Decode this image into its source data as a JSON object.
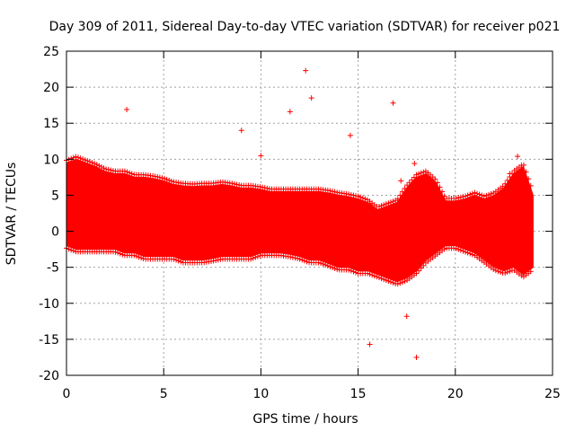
{
  "chart_data": {
    "type": "scatter",
    "title": "Day 309 of 2011, Sidereal Day-to-day VTEC variation (SDTVAR) for receiver p021",
    "xlabel": "GPS time / hours",
    "ylabel": "SDTVAR / TECUs",
    "xlim": [
      0,
      25
    ],
    "ylim": [
      -20,
      25
    ],
    "xticks": [
      "0",
      "5",
      "10",
      "15",
      "20",
      "25"
    ],
    "yticks": [
      "25",
      "20",
      "15",
      "10",
      "5",
      "0",
      "-5",
      "-10",
      "-15",
      "-20"
    ],
    "grid": true,
    "marker": "+",
    "color": "#ff0000",
    "data_range": [
      0,
      24
    ],
    "series": [
      {
        "name": "band_upper",
        "x": [
          0,
          0.5,
          1,
          1.5,
          2,
          2.5,
          3,
          3.5,
          4,
          4.5,
          5,
          5.5,
          6,
          6.5,
          7,
          7.5,
          8,
          8.5,
          9,
          9.5,
          10,
          10.5,
          11,
          11.5,
          12,
          12.5,
          13,
          13.5,
          14,
          14.5,
          15,
          15.5,
          16,
          16.5,
          17,
          17.5,
          18,
          18.5,
          19,
          19.5,
          20,
          20.5,
          21,
          21.5,
          22,
          22.5,
          23,
          23.5,
          24
        ],
        "y": [
          9.5,
          10,
          9.5,
          9,
          8.3,
          8,
          8,
          7.5,
          7.5,
          7.3,
          7,
          6.5,
          6.3,
          6.2,
          6.3,
          6.3,
          6.5,
          6.3,
          6,
          6,
          5.8,
          5.5,
          5.5,
          5.5,
          5.5,
          5.5,
          5.5,
          5.3,
          5,
          4.8,
          4.5,
          4,
          3,
          3.5,
          4,
          6,
          7.5,
          8,
          6.8,
          4.2,
          4.2,
          4.5,
          5,
          4.5,
          5,
          6,
          8,
          9,
          5
        ]
      },
      {
        "name": "band_lower",
        "x": [
          0,
          0.5,
          1,
          1.5,
          2,
          2.5,
          3,
          3.5,
          4,
          4.5,
          5,
          5.5,
          6,
          6.5,
          7,
          7.5,
          8,
          8.5,
          9,
          9.5,
          10,
          10.5,
          11,
          11.5,
          12,
          12.5,
          13,
          13.5,
          14,
          14.5,
          15,
          15.5,
          16,
          16.5,
          17,
          17.5,
          18,
          18.5,
          19,
          19.5,
          20,
          20.5,
          21,
          21.5,
          22,
          22.5,
          23,
          23.5,
          24
        ],
        "y": [
          -2,
          -2.5,
          -2.5,
          -2.5,
          -2.5,
          -2.5,
          -3,
          -3,
          -3.5,
          -3.5,
          -3.5,
          -3.5,
          -4,
          -4,
          -4,
          -3.8,
          -3.5,
          -3.5,
          -3.5,
          -3.5,
          -3,
          -3,
          -3,
          -3.2,
          -3.5,
          -4,
          -4,
          -4.5,
          -5,
          -5,
          -5.5,
          -5.5,
          -6,
          -6.5,
          -7,
          -6.5,
          -5.5,
          -4,
          -3,
          -2,
          -2,
          -2.5,
          -3,
          -4,
          -5,
          -5.5,
          -5,
          -6,
          -5
        ]
      },
      {
        "name": "outliers",
        "x": [
          3.1,
          12.3,
          12.6,
          16.8,
          11.5,
          9.0,
          10.0,
          14.6,
          17.9,
          15.6,
          15.6,
          17.2,
          18.0,
          17.5,
          23.2,
          22.8
        ],
        "y": [
          16.9,
          22.3,
          18.5,
          17.8,
          16.6,
          14.0,
          10.5,
          13.3,
          9.4,
          3.8,
          -15.7,
          7.0,
          -17.5,
          -11.8,
          10.4,
          8.0
        ]
      }
    ]
  }
}
